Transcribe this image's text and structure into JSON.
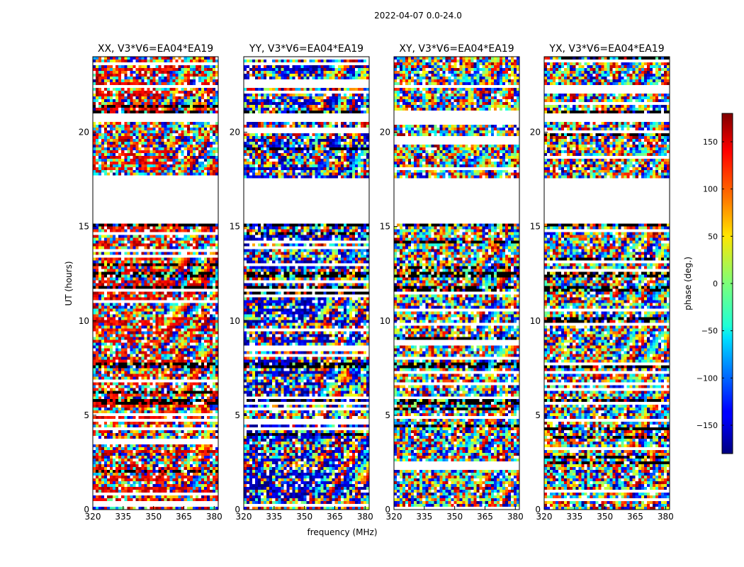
{
  "chart_data": {
    "type": "heatmap",
    "title": "2022-04-07 0.0-24.0",
    "xlabel": "frequency (MHz)",
    "ylabel": "UT (hours)",
    "xlim": [
      320,
      382
    ],
    "ylim": [
      0,
      24
    ],
    "x_ticks": [
      320,
      335,
      350,
      365,
      380
    ],
    "y_ticks": [
      0,
      5,
      10,
      15,
      20
    ],
    "panels": [
      {
        "title": "XX, V3*V6=EA04*EA19",
        "pol": "XX"
      },
      {
        "title": "YY, V3*V6=EA04*EA19",
        "pol": "YY"
      },
      {
        "title": "XY, V3*V6=EA04*EA19",
        "pol": "XY"
      },
      {
        "title": "YX, V3*V6=EA04*EA19",
        "pol": "YX"
      }
    ],
    "colorbar": {
      "label": "phase (deg.)",
      "range": [
        -180,
        180
      ],
      "ticks": [
        150,
        100,
        50,
        0,
        -50,
        -100,
        -150
      ],
      "tick_labels": [
        "150",
        "100",
        "50",
        "0",
        "−50",
        "−100",
        "−150"
      ],
      "colormap": "jet"
    },
    "blank_ut_intervals": [
      [
        15.1,
        17.5
      ],
      [
        20.6,
        21.0
      ],
      [
        22.3,
        22.5
      ]
    ],
    "dark_bands_ut": [
      [
        5.6,
        5.9
      ],
      [
        7.5,
        7.8
      ],
      [
        11.6,
        11.8
      ],
      [
        12.3,
        12.6
      ],
      [
        15.0,
        15.15
      ],
      [
        21.0,
        21.1
      ]
    ]
  }
}
